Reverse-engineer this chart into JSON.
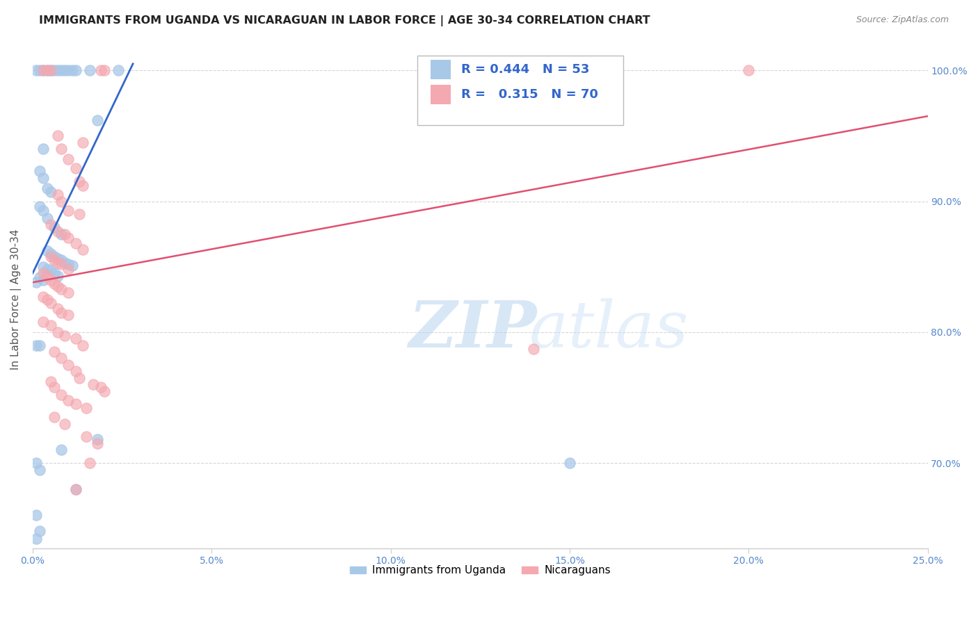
{
  "title": "IMMIGRANTS FROM UGANDA VS NICARAGUAN IN LABOR FORCE | AGE 30-34 CORRELATION CHART",
  "source": "Source: ZipAtlas.com",
  "ylabel_label": "In Labor Force | Age 30-34",
  "legend_blue_label": "Immigrants from Uganda",
  "legend_pink_label": "Nicaraguans",
  "blue_R": "0.444",
  "blue_N": "53",
  "pink_R": "0.315",
  "pink_N": "70",
  "blue_color": "#a8c8e8",
  "pink_color": "#f4a8b0",
  "blue_line_color": "#3366cc",
  "pink_line_color": "#e05070",
  "watermark_zip": "ZIP",
  "watermark_atlas": "atlas",
  "xmin": 0.0,
  "xmax": 0.25,
  "ymin": 0.635,
  "ymax": 1.015,
  "blue_points": [
    [
      0.001,
      1.0
    ],
    [
      0.002,
      1.0
    ],
    [
      0.003,
      1.0
    ],
    [
      0.004,
      1.0
    ],
    [
      0.005,
      1.0
    ],
    [
      0.006,
      1.0
    ],
    [
      0.007,
      1.0
    ],
    [
      0.008,
      1.0
    ],
    [
      0.009,
      1.0
    ],
    [
      0.01,
      1.0
    ],
    [
      0.011,
      1.0
    ],
    [
      0.012,
      1.0
    ],
    [
      0.016,
      1.0
    ],
    [
      0.024,
      1.0
    ],
    [
      0.018,
      0.962
    ],
    [
      0.003,
      0.94
    ],
    [
      0.002,
      0.923
    ],
    [
      0.003,
      0.918
    ],
    [
      0.004,
      0.91
    ],
    [
      0.005,
      0.907
    ],
    [
      0.002,
      0.896
    ],
    [
      0.003,
      0.893
    ],
    [
      0.004,
      0.887
    ],
    [
      0.006,
      0.88
    ],
    [
      0.008,
      0.875
    ],
    [
      0.004,
      0.862
    ],
    [
      0.005,
      0.86
    ],
    [
      0.006,
      0.858
    ],
    [
      0.007,
      0.856
    ],
    [
      0.008,
      0.855
    ],
    [
      0.009,
      0.853
    ],
    [
      0.01,
      0.852
    ],
    [
      0.011,
      0.851
    ],
    [
      0.003,
      0.85
    ],
    [
      0.004,
      0.848
    ],
    [
      0.005,
      0.847
    ],
    [
      0.006,
      0.845
    ],
    [
      0.007,
      0.843
    ],
    [
      0.002,
      0.842
    ],
    [
      0.003,
      0.84
    ],
    [
      0.001,
      0.838
    ],
    [
      0.001,
      0.79
    ],
    [
      0.002,
      0.79
    ],
    [
      0.018,
      0.718
    ],
    [
      0.008,
      0.71
    ],
    [
      0.001,
      0.7
    ],
    [
      0.002,
      0.695
    ],
    [
      0.012,
      0.68
    ],
    [
      0.001,
      0.66
    ],
    [
      0.002,
      0.648
    ],
    [
      0.001,
      0.642
    ],
    [
      0.15,
      0.7
    ]
  ],
  "pink_points": [
    [
      0.003,
      1.0
    ],
    [
      0.004,
      1.0
    ],
    [
      0.005,
      1.0
    ],
    [
      0.019,
      1.0
    ],
    [
      0.02,
      1.0
    ],
    [
      0.16,
      1.0
    ],
    [
      0.2,
      1.0
    ],
    [
      0.007,
      0.95
    ],
    [
      0.014,
      0.945
    ],
    [
      0.008,
      0.94
    ],
    [
      0.01,
      0.932
    ],
    [
      0.012,
      0.925
    ],
    [
      0.013,
      0.915
    ],
    [
      0.014,
      0.912
    ],
    [
      0.007,
      0.905
    ],
    [
      0.008,
      0.9
    ],
    [
      0.01,
      0.893
    ],
    [
      0.013,
      0.89
    ],
    [
      0.005,
      0.882
    ],
    [
      0.007,
      0.877
    ],
    [
      0.009,
      0.875
    ],
    [
      0.01,
      0.872
    ],
    [
      0.012,
      0.868
    ],
    [
      0.014,
      0.863
    ],
    [
      0.005,
      0.858
    ],
    [
      0.006,
      0.855
    ],
    [
      0.007,
      0.853
    ],
    [
      0.008,
      0.852
    ],
    [
      0.01,
      0.848
    ],
    [
      0.003,
      0.845
    ],
    [
      0.004,
      0.843
    ],
    [
      0.005,
      0.84
    ],
    [
      0.006,
      0.837
    ],
    [
      0.007,
      0.835
    ],
    [
      0.008,
      0.833
    ],
    [
      0.01,
      0.83
    ],
    [
      0.003,
      0.827
    ],
    [
      0.004,
      0.825
    ],
    [
      0.005,
      0.822
    ],
    [
      0.007,
      0.818
    ],
    [
      0.008,
      0.815
    ],
    [
      0.01,
      0.813
    ],
    [
      0.003,
      0.808
    ],
    [
      0.005,
      0.805
    ],
    [
      0.007,
      0.8
    ],
    [
      0.009,
      0.797
    ],
    [
      0.012,
      0.795
    ],
    [
      0.014,
      0.79
    ],
    [
      0.006,
      0.785
    ],
    [
      0.008,
      0.78
    ],
    [
      0.14,
      0.787
    ],
    [
      0.01,
      0.775
    ],
    [
      0.012,
      0.77
    ],
    [
      0.005,
      0.762
    ],
    [
      0.006,
      0.758
    ],
    [
      0.008,
      0.752
    ],
    [
      0.01,
      0.748
    ],
    [
      0.012,
      0.745
    ],
    [
      0.015,
      0.742
    ],
    [
      0.006,
      0.735
    ],
    [
      0.009,
      0.73
    ],
    [
      0.02,
      0.755
    ],
    [
      0.016,
      0.7
    ],
    [
      0.013,
      0.765
    ],
    [
      0.017,
      0.76
    ],
    [
      0.019,
      0.758
    ],
    [
      0.015,
      0.72
    ],
    [
      0.018,
      0.715
    ],
    [
      0.012,
      0.68
    ]
  ]
}
